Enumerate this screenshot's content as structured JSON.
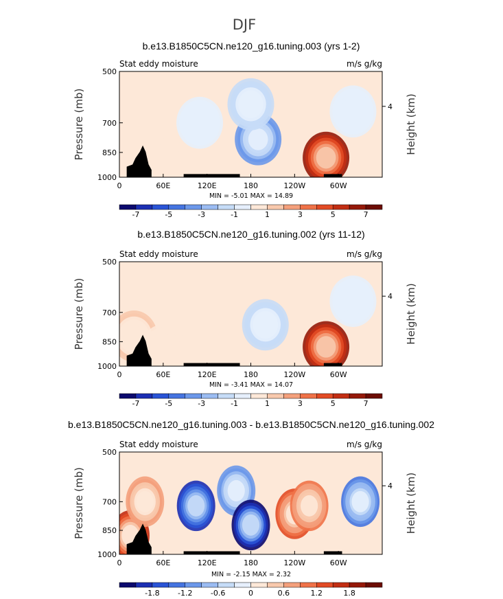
{
  "page_title": "DJF",
  "chart_data": [
    {
      "type": "heatmap",
      "title": "b.e13.B1850C5CN.ne120_g16.tuning.003 (yrs 1-2)",
      "left_label": "Stat eddy moisture",
      "right_label": "m/s g/kg",
      "ylabel": "Pressure (mb)",
      "ylabel_right": "Height (km)",
      "yticks": [
        "500",
        "700",
        "850",
        "1000"
      ],
      "ytick_values": [
        500,
        700,
        850,
        1000
      ],
      "yticks_right": [
        "4"
      ],
      "xticks": [
        "0",
        "60E",
        "120E",
        "180",
        "120W",
        "60W"
      ],
      "xtick_values": [
        0,
        60,
        120,
        180,
        240,
        300
      ],
      "xlim": [
        0,
        360
      ],
      "ylim": [
        1000,
        500
      ],
      "min_max": "MIN =   -5.01   MAX =   14.89",
      "colorbar_ticks": [
        "-7",
        "-5",
        "-3",
        "-1",
        "1",
        "3",
        "5",
        "7"
      ],
      "colorbar_colors": [
        "#0c0a6e",
        "#1c2fb3",
        "#2a54d6",
        "#4574e0",
        "#6c98ea",
        "#9bbcf2",
        "#c6dcf7",
        "#e6effc",
        "#fde8d8",
        "#f8c9ad",
        "#f4a07c",
        "#ef7248",
        "#e24b25",
        "#c22e13",
        "#951909",
        "#6c0d04"
      ],
      "features": [
        {
          "lon": 0,
          "p": 1000,
          "v": 0.4
        },
        {
          "lon": 60,
          "p": 900,
          "v": 0.8
        },
        {
          "lon": 110,
          "p": 700,
          "v": -0.8
        },
        {
          "lon": 190,
          "p": 780,
          "v": -3.4
        },
        {
          "lon": 180,
          "p": 620,
          "v": -1.5
        },
        {
          "lon": 283,
          "p": 880,
          "v": 6.5
        },
        {
          "lon": 320,
          "p": 650,
          "v": -0.6
        }
      ]
    },
    {
      "type": "heatmap",
      "title": "b.e13.B1850C5CN.ne120_g16.tuning.002 (yrs 11-12)",
      "left_label": "Stat eddy moisture",
      "right_label": "m/s g/kg",
      "ylabel": "Pressure (mb)",
      "ylabel_right": "Height (km)",
      "yticks": [
        "500",
        "700",
        "850",
        "1000"
      ],
      "ytick_values": [
        500,
        700,
        850,
        1000
      ],
      "yticks_right": [
        "4"
      ],
      "xticks": [
        "0",
        "60E",
        "120E",
        "180",
        "120W",
        "60W"
      ],
      "xtick_values": [
        0,
        60,
        120,
        180,
        240,
        300
      ],
      "xlim": [
        0,
        360
      ],
      "ylim": [
        1000,
        500
      ],
      "min_max": "MIN =   -3.41   MAX =   14.07",
      "colorbar_ticks": [
        "-7",
        "-5",
        "-3",
        "-1",
        "1",
        "3",
        "5",
        "7"
      ],
      "colorbar_colors": [
        "#0c0a6e",
        "#1c2fb3",
        "#2a54d6",
        "#4574e0",
        "#6c98ea",
        "#9bbcf2",
        "#c6dcf7",
        "#e6effc",
        "#fde8d8",
        "#f8c9ad",
        "#f4a07c",
        "#ef7248",
        "#e24b25",
        "#c22e13",
        "#951909",
        "#6c0d04"
      ],
      "features": [
        {
          "lon": 20,
          "p": 820,
          "v": 1.2
        },
        {
          "lon": 60,
          "p": 900,
          "v": 0.9
        },
        {
          "lon": 200,
          "p": 760,
          "v": -1.6
        },
        {
          "lon": 283,
          "p": 880,
          "v": 6.0
        },
        {
          "lon": 320,
          "p": 650,
          "v": -0.6
        }
      ]
    },
    {
      "type": "heatmap",
      "title": "b.e13.B1850C5CN.ne120_g16.tuning.003 - b.e13.B1850C5CN.ne120_g16.tuning.002",
      "left_label": "Stat eddy moisture",
      "right_label": "m/s g/kg",
      "ylabel": "Pressure (mb)",
      "ylabel_right": "Height (km)",
      "yticks": [
        "500",
        "700",
        "850",
        "1000"
      ],
      "ytick_values": [
        500,
        700,
        850,
        1000
      ],
      "yticks_right": [
        "4"
      ],
      "xticks": [
        "0",
        "60E",
        "120E",
        "180",
        "120W",
        "60W"
      ],
      "xtick_values": [
        0,
        60,
        120,
        180,
        240,
        300
      ],
      "xlim": [
        0,
        360
      ],
      "ylim": [
        1000,
        500
      ],
      "min_max": "MIN =   -2.15   MAX =   2.32",
      "colorbar_ticks": [
        "-1.8",
        "-1.2",
        "-0.6",
        "0",
        "0.6",
        "1.2",
        "1.8"
      ],
      "colorbar_colors": [
        "#0c0a6e",
        "#1c2fb3",
        "#2a54d6",
        "#4574e0",
        "#6c98ea",
        "#9bbcf2",
        "#c6dcf7",
        "#e6effc",
        "#fde8d8",
        "#f8c9ad",
        "#f4a07c",
        "#ef7248",
        "#e24b25",
        "#c22e13",
        "#951909",
        "#6c0d04"
      ],
      "features": [
        {
          "lon": 15,
          "p": 880,
          "v": 1.5
        },
        {
          "lon": 35,
          "p": 700,
          "v": 0.7
        },
        {
          "lon": 105,
          "p": 720,
          "v": -1.8
        },
        {
          "lon": 160,
          "p": 650,
          "v": -1.0
        },
        {
          "lon": 180,
          "p": 820,
          "v": -2.0
        },
        {
          "lon": 240,
          "p": 760,
          "v": 1.1
        },
        {
          "lon": 260,
          "p": 720,
          "v": 0.9
        },
        {
          "lon": 330,
          "p": 700,
          "v": -1.2
        }
      ]
    }
  ]
}
